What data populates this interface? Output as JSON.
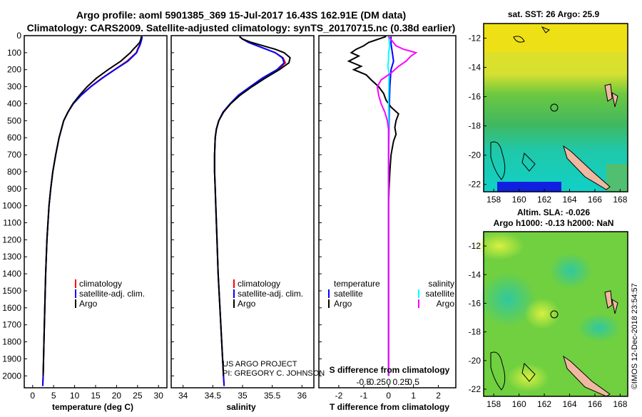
{
  "header": {
    "title_line1": "Argo profile: aoml 5901385_369 15-Jul-2017 16.43S 162.91E (DM data)",
    "title_line2": "Climatology: CARS2009. Satellite-adjusted climatology: synTS_20170715.nc (0.38d earlier)"
  },
  "depth_axis": {
    "ticks": [
      0,
      100,
      200,
      300,
      400,
      500,
      600,
      700,
      800,
      900,
      1000,
      1100,
      1200,
      1300,
      1400,
      1500,
      1600,
      1700,
      1800,
      1900,
      2000
    ],
    "ylim": [
      0,
      2070
    ]
  },
  "colors": {
    "climatology": "#ff0000",
    "satellite": "#0000ff",
    "argo": "#000000",
    "sal_satellite": "#00ffff",
    "sal_argo": "#ff00ff"
  },
  "chart_data": [
    {
      "type": "line",
      "id": "temperature",
      "xlabel": "temperature (deg C)",
      "xlim": [
        -2,
        32
      ],
      "xticks": [
        0,
        5,
        10,
        15,
        20,
        25,
        30
      ],
      "xtick_labels": [
        "0",
        "5",
        "10",
        "15",
        "20",
        "25",
        "30"
      ],
      "ylabel": "depth",
      "legend": [
        "climatology",
        "satellite-adj. clim.",
        "Argo"
      ],
      "series": [
        {
          "name": "climatology",
          "depth": [
            5,
            20,
            40,
            60,
            80,
            100,
            150,
            200,
            250,
            300,
            350,
            400,
            450,
            500,
            600,
            700,
            800,
            900,
            1000,
            1200,
            1400,
            1600,
            1800,
            2000,
            2060
          ],
          "values": [
            26.0,
            25.9,
            25.7,
            25.4,
            25.0,
            24.7,
            22.5,
            19.5,
            16.5,
            13.8,
            11.5,
            9.6,
            8.4,
            7.4,
            6.3,
            5.5,
            4.8,
            4.3,
            3.9,
            3.4,
            3.1,
            2.9,
            2.7,
            2.5,
            2.4
          ]
        },
        {
          "name": "satellite-adj. clim.",
          "depth": [
            5,
            20,
            40,
            60,
            80,
            100,
            150,
            200,
            250,
            300,
            350,
            400,
            450,
            500,
            600,
            700,
            800,
            900,
            1000,
            1200,
            1400,
            1600,
            1800,
            2000,
            2060
          ],
          "values": [
            26.1,
            26.0,
            25.8,
            25.5,
            25.1,
            24.8,
            22.7,
            19.6,
            16.6,
            13.9,
            11.6,
            9.7,
            8.4,
            7.4,
            6.3,
            5.5,
            4.8,
            4.3,
            3.9,
            3.4,
            3.1,
            2.9,
            2.7,
            2.5,
            2.4
          ]
        },
        {
          "name": "Argo",
          "depth": [
            5,
            20,
            40,
            60,
            80,
            100,
            150,
            200,
            250,
            300,
            350,
            400,
            450,
            500,
            600,
            700,
            800,
            900,
            1000,
            1200,
            1400,
            1600,
            1800,
            2000
          ],
          "values": [
            25.9,
            25.8,
            25.5,
            24.8,
            24.0,
            23.3,
            21.0,
            18.0,
            15.2,
            13.0,
            11.2,
            9.6,
            8.4,
            7.4,
            6.3,
            5.5,
            4.8,
            4.3,
            3.9,
            3.4,
            3.1,
            2.9,
            2.7,
            2.5
          ]
        }
      ]
    },
    {
      "type": "line",
      "id": "salinity",
      "xlabel": "salinity",
      "xlim": [
        33.8,
        36.2
      ],
      "xticks": [
        34,
        34.5,
        35,
        35.5,
        36
      ],
      "xtick_labels": [
        "34",
        "34.5",
        "35",
        "35.5",
        "36"
      ],
      "legend": [
        "climatology",
        "satellite-adj. clim.",
        "Argo"
      ],
      "credit_line1": "US ARGO PROJECT",
      "credit_line2": "PI: GREGORY C. JOHNSON",
      "series": [
        {
          "name": "climatology",
          "depth": [
            5,
            20,
            40,
            60,
            80,
            100,
            130,
            160,
            200,
            250,
            300,
            350,
            400,
            450,
            500,
            550,
            600,
            700,
            800,
            900,
            1000,
            1200,
            1400,
            1600,
            1800,
            2000,
            2060
          ],
          "values": [
            34.95,
            35.0,
            35.1,
            35.25,
            35.4,
            35.55,
            35.68,
            35.72,
            35.6,
            35.35,
            35.15,
            34.95,
            34.8,
            34.68,
            34.6,
            34.56,
            34.54,
            34.53,
            34.53,
            34.54,
            34.55,
            34.57,
            34.59,
            34.62,
            34.65,
            34.68,
            34.69
          ]
        },
        {
          "name": "satellite-adj. clim.",
          "depth": [
            5,
            20,
            40,
            60,
            80,
            100,
            130,
            160,
            200,
            250,
            300,
            350,
            400,
            450,
            500,
            550,
            600,
            700,
            800,
            900,
            1000,
            1200,
            1400,
            1600,
            1800,
            2000,
            2060
          ],
          "values": [
            34.95,
            35.0,
            35.1,
            35.25,
            35.4,
            35.55,
            35.67,
            35.7,
            35.58,
            35.33,
            35.13,
            34.93,
            34.79,
            34.67,
            34.6,
            34.56,
            34.54,
            34.53,
            34.53,
            34.54,
            34.55,
            34.57,
            34.59,
            34.62,
            34.65,
            34.68,
            34.69
          ]
        },
        {
          "name": "Argo",
          "depth": [
            5,
            20,
            40,
            60,
            80,
            100,
            130,
            160,
            200,
            250,
            300,
            350,
            400,
            450,
            500,
            550,
            600,
            700,
            800,
            900,
            1000,
            1200,
            1400,
            1600,
            1800,
            2000
          ],
          "values": [
            34.95,
            35.0,
            35.15,
            35.35,
            35.55,
            35.7,
            35.8,
            35.78,
            35.62,
            35.38,
            35.16,
            34.96,
            34.8,
            34.68,
            34.6,
            34.56,
            34.54,
            34.53,
            34.53,
            34.54,
            34.55,
            34.57,
            34.59,
            34.62,
            34.65,
            34.68
          ]
        }
      ]
    },
    {
      "type": "line",
      "id": "difference",
      "xlabel": "T difference from climatology",
      "xlabel_top": "S difference from climatology",
      "xlim": [
        -2.8,
        2.7
      ],
      "xticks": [
        -2,
        -1,
        0,
        1,
        2
      ],
      "xtick_labels": [
        "-2",
        "-1",
        "0",
        "1",
        "2"
      ],
      "s_xticks": [
        -1,
        -0.5,
        0,
        0.5,
        1
      ],
      "s_xtick_labels": [
        "-0.5",
        "-0.25",
        "0",
        "0.25",
        "0.5"
      ],
      "legend_left_title": "temperature",
      "legend_right_title": "salinity",
      "legend_left": [
        "satellite",
        "Argo"
      ],
      "legend_right": [
        "satellite",
        "Argo"
      ],
      "series": [
        {
          "name": "T satellite",
          "depth": [
            5,
            50,
            100,
            150,
            200,
            300,
            400,
            500,
            600,
            800,
            1000,
            1500,
            2000
          ],
          "values": [
            0.1,
            0.1,
            0.15,
            0.2,
            0.1,
            0.05,
            0.03,
            0.02,
            0.01,
            0.0,
            0.0,
            0.0,
            0.0
          ]
        },
        {
          "name": "T Argo",
          "depth": [
            5,
            40,
            60,
            80,
            100,
            120,
            150,
            180,
            200,
            230,
            260,
            300,
            340,
            380,
            420,
            460,
            500,
            540,
            580,
            620,
            700,
            800,
            900,
            1000,
            1200,
            1500,
            2000
          ],
          "values": [
            -0.1,
            -0.8,
            -1.0,
            -1.3,
            -1.5,
            -1.2,
            -1.6,
            -1.1,
            -1.4,
            -0.9,
            -0.7,
            -0.4,
            -0.2,
            -0.1,
            0.1,
            0.4,
            0.3,
            0.25,
            0.3,
            0.2,
            0.1,
            0.05,
            0.02,
            0.0,
            0.0,
            0.0,
            0.0
          ]
        },
        {
          "name": "S satellite",
          "depth": [
            5,
            60,
            100,
            140,
            180,
            220,
            300,
            400,
            500,
            600,
            800,
            1000,
            1500,
            2000
          ],
          "values": [
            0.0,
            0.05,
            0.0,
            0.0,
            -0.03,
            0.02,
            0.01,
            0.0,
            0.0,
            0.0,
            0.0,
            0.0,
            0.0,
            0.0
          ]
        },
        {
          "name": "S Argo",
          "depth": [
            5,
            60,
            80,
            100,
            120,
            150,
            180,
            220,
            260,
            300,
            350,
            400,
            450,
            500,
            550,
            600,
            800,
            1000,
            1500,
            2000
          ],
          "values": [
            0.0,
            0.3,
            0.6,
            1.1,
            0.9,
            0.7,
            0.4,
            0.1,
            -0.3,
            -0.45,
            -0.4,
            -0.3,
            -0.15,
            -0.05,
            0.0,
            0.0,
            0.0,
            0.0,
            0.0,
            0.0
          ]
        }
      ]
    }
  ],
  "maps": {
    "top": {
      "title": "sat. SST: 26 Argo: 25.9",
      "lat_ticks": [
        "-12",
        "-14",
        "-16",
        "-18",
        "-20",
        "-22"
      ],
      "lon_ticks": [
        "158",
        "160",
        "162",
        "164",
        "166",
        "168"
      ]
    },
    "bottom": {
      "title_line1": "Altim. SLA: -0.026",
      "title_line2": "Argo h1000: -0.13 h2000: NaN",
      "lat_ticks": [
        "-12",
        "-14",
        "-16",
        "-18",
        "-20",
        "-22"
      ],
      "lon_ticks": [
        "158",
        "160",
        "162",
        "164",
        "166",
        "168"
      ]
    },
    "lat_values": [
      -12,
      -14,
      -16,
      -18,
      -20,
      -22
    ],
    "lon_values": [
      158,
      160,
      162,
      164,
      166,
      168
    ],
    "profile_lat": -16.43,
    "profile_lon": 162.91
  },
  "footer": {
    "stamp": "©IMOS 12-Dec-2018 23:54:57"
  }
}
